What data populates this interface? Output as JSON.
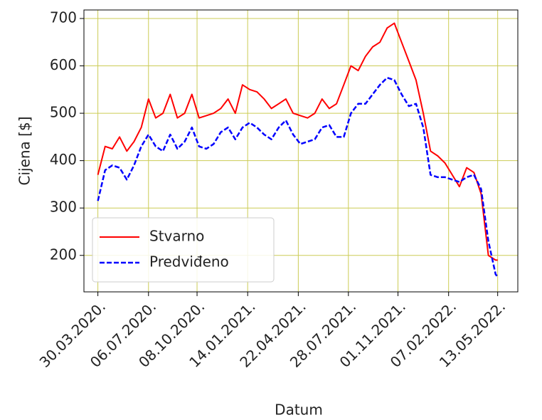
{
  "chart_data": {
    "type": "line",
    "xlabel": "Datum",
    "ylabel": "Cijena [$]",
    "x": [
      "2020-03-30",
      "2020-04-13",
      "2020-04-27",
      "2020-05-11",
      "2020-05-25",
      "2020-06-08",
      "2020-06-22",
      "2020-07-06",
      "2020-07-20",
      "2020-08-03",
      "2020-08-17",
      "2020-08-31",
      "2020-09-14",
      "2020-09-28",
      "2020-10-12",
      "2020-10-26",
      "2020-11-09",
      "2020-11-23",
      "2020-12-07",
      "2020-12-21",
      "2021-01-04",
      "2021-01-18",
      "2021-02-01",
      "2021-02-15",
      "2021-03-01",
      "2021-03-15",
      "2021-03-29",
      "2021-04-12",
      "2021-04-26",
      "2021-05-10",
      "2021-05-24",
      "2021-06-07",
      "2021-06-21",
      "2021-07-05",
      "2021-07-19",
      "2021-08-02",
      "2021-08-16",
      "2021-08-30",
      "2021-09-13",
      "2021-09-27",
      "2021-10-11",
      "2021-10-25",
      "2021-11-08",
      "2021-11-22",
      "2021-12-06",
      "2021-12-20",
      "2022-01-03",
      "2022-01-17",
      "2022-01-31",
      "2022-02-14",
      "2022-02-28",
      "2022-03-14",
      "2022-03-28",
      "2022-04-11",
      "2022-04-25",
      "2022-05-09",
      "2022-05-13"
    ],
    "series": [
      {
        "name": "Stvarno",
        "color": "#ff0000",
        "dash": "solid",
        "values": [
          370,
          430,
          425,
          450,
          420,
          440,
          470,
          530,
          490,
          500,
          540,
          490,
          500,
          540,
          490,
          495,
          500,
          510,
          530,
          500,
          560,
          550,
          545,
          530,
          510,
          520,
          530,
          500,
          495,
          490,
          500,
          530,
          510,
          520,
          560,
          600,
          590,
          620,
          640,
          650,
          680,
          690,
          650,
          610,
          570,
          500,
          420,
          410,
          395,
          370,
          345,
          385,
          375,
          330,
          200,
          190,
          190
        ]
      },
      {
        "name": "Predviđeno",
        "color": "#0000ff",
        "dash": "dashed",
        "values": [
          315,
          380,
          390,
          385,
          360,
          390,
          430,
          455,
          430,
          420,
          455,
          425,
          440,
          470,
          430,
          425,
          435,
          460,
          470,
          445,
          470,
          480,
          470,
          455,
          445,
          470,
          485,
          455,
          435,
          440,
          445,
          470,
          475,
          450,
          450,
          500,
          520,
          520,
          540,
          560,
          575,
          570,
          540,
          515,
          520,
          470,
          370,
          365,
          365,
          360,
          355,
          365,
          370,
          340,
          230,
          160,
          155
        ]
      }
    ],
    "xlim": [
      "2020-03-03",
      "2022-06-21"
    ],
    "xticks": [
      {
        "value": "2020-03-30",
        "label": "30.03.2020."
      },
      {
        "value": "2020-07-06",
        "label": "06.07.2020."
      },
      {
        "value": "2020-10-08",
        "label": "08.10.2020."
      },
      {
        "value": "2021-01-14",
        "label": "14.01.2021."
      },
      {
        "value": "2021-04-22",
        "label": "22.04.2021."
      },
      {
        "value": "2021-07-28",
        "label": "28.07.2021."
      },
      {
        "value": "2021-11-01",
        "label": "01.11.2021."
      },
      {
        "value": "2022-02-07",
        "label": "07.02.2022."
      },
      {
        "value": "2022-05-13",
        "label": "13.05.2022."
      }
    ],
    "ylim": [
      123,
      718
    ],
    "yticks": [
      200,
      300,
      400,
      500,
      600,
      700
    ],
    "grid": true,
    "grid_color": "#cccc55",
    "legend": "lower left"
  }
}
